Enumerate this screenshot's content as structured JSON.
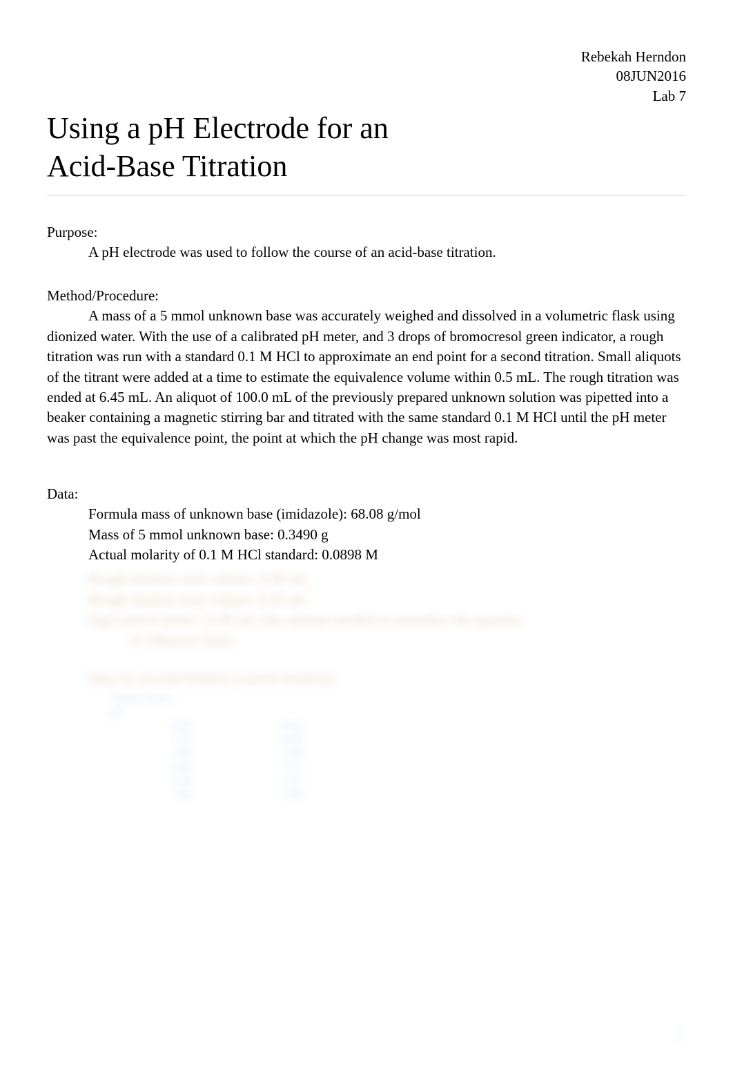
{
  "header": {
    "name": "Rebekah Herndon",
    "date": "08JUN2016",
    "lab": "Lab 7"
  },
  "title_line1": "Using a pH Electrode for an",
  "title_line2": "Acid-Base Titration",
  "purpose": {
    "label": "Purpose:",
    "text": "A pH electrode was used to follow the course of an acid-base titration."
  },
  "method": {
    "label": "Method/Procedure:",
    "text": "A mass of a 5 mmol unknown base was accurately weighed and dissolved in a volumetric flask using dionized water. With the use of a calibrated pH meter, and 3 drops of bromocresol green indicator, a rough titration was run with a standard 0.1 M HCl to approximate an end point for a second titration. Small aliquots of the titrant were added at a time to estimate the equivalence volume within 0.5 mL. The rough titration was ended at 6.45 mL. An aliquot of 100.0 mL of the previously prepared unknown solution was pipetted into a beaker containing a magnetic stirring bar and titrated with the same standard 0.1 M HCl until the pH meter was past the equivalence point, the point at which the pH change was most rapid."
  },
  "data": {
    "label": "Data:",
    "lines": [
      "Formula mass of unknown base (imidazole): 68.08 g/mol",
      "Mass of 5 mmol unknown base: 0.3490 g",
      "Actual molarity of 0.1 M HCl standard: 0.0898 M"
    ],
    "blurred_lines": [
      "Rough titration start volume: 0.00 mL",
      "Rough titration stop volume: 6.45 mL",
      "Equivalence point: 12.90 mL (the amount needed to neutralize the quantity"
    ],
    "blurred_sub": "of unknown base)",
    "blurred_heading": "Data for second titration (careful titration):",
    "table_head_c1": "Volume (mL)",
    "table_head_c2": "pH",
    "table_rows": [
      {
        "v": "0.00",
        "ph": "8.62"
      },
      {
        "v": "1.20",
        "ph": "8.28"
      },
      {
        "v": "2.40",
        "ph": "7.96"
      },
      {
        "v": "4.60",
        "ph": "7.71"
      },
      {
        "v": "5.80",
        "ph": "7.47"
      },
      {
        "v": "7.00",
        "ph": "7.06"
      }
    ]
  },
  "page_number": "1"
}
